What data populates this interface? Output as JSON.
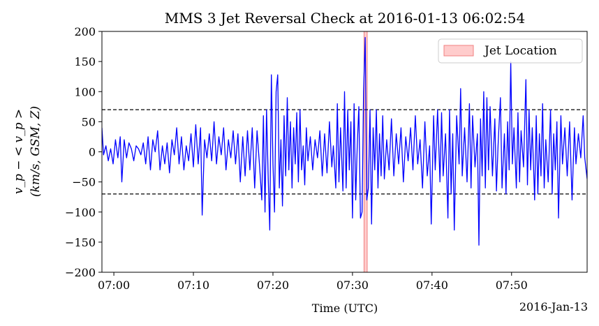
{
  "chart_data": {
    "type": "line",
    "title": "MMS 3 Jet Reversal Check at 2016-01-13 06:02:54",
    "xlabel": "Time (UTC)",
    "ylabel_line1": "v_p − < v_p >",
    "ylabel_line2": "(km/s, GSM, Z)",
    "date_label": "2016-Jan-13",
    "xlim_minutes": [
      418.5,
      479.5
    ],
    "ylim": [
      -200,
      200
    ],
    "yticks": [
      -200,
      -150,
      -100,
      -50,
      0,
      50,
      100,
      150,
      200
    ],
    "xticks": [
      {
        "minute": 420,
        "label": "07:00"
      },
      {
        "minute": 430,
        "label": "07:10"
      },
      {
        "minute": 440,
        "label": "07:20"
      },
      {
        "minute": 450,
        "label": "07:30"
      },
      {
        "minute": 460,
        "label": "07:40"
      },
      {
        "minute": 470,
        "label": "07:50"
      }
    ],
    "thresholds": [
      70,
      -70
    ],
    "jet_band_minutes": [
      451.45,
      451.85
    ],
    "legend": {
      "label": "Jet Location",
      "placement": "upper-right"
    },
    "series": [
      {
        "color": "#0000ff",
        "points": [
          [
            418.5,
            40
          ],
          [
            418.7,
            -5
          ],
          [
            419.0,
            10
          ],
          [
            419.3,
            -15
          ],
          [
            419.6,
            5
          ],
          [
            419.9,
            -20
          ],
          [
            420.2,
            20
          ],
          [
            420.5,
            -10
          ],
          [
            420.8,
            25
          ],
          [
            421.0,
            -50
          ],
          [
            421.3,
            20
          ],
          [
            421.6,
            -10
          ],
          [
            421.9,
            15
          ],
          [
            422.2,
            5
          ],
          [
            422.5,
            -15
          ],
          [
            422.8,
            10
          ],
          [
            423.1,
            5
          ],
          [
            423.4,
            -5
          ],
          [
            423.7,
            15
          ],
          [
            424.0,
            -20
          ],
          [
            424.3,
            25
          ],
          [
            424.6,
            -30
          ],
          [
            424.9,
            20
          ],
          [
            425.2,
            0
          ],
          [
            425.5,
            35
          ],
          [
            425.8,
            -30
          ],
          [
            426.1,
            10
          ],
          [
            426.4,
            -20
          ],
          [
            426.7,
            15
          ],
          [
            427.0,
            -35
          ],
          [
            427.3,
            20
          ],
          [
            427.6,
            -5
          ],
          [
            427.9,
            40
          ],
          [
            428.2,
            -20
          ],
          [
            428.5,
            25
          ],
          [
            428.8,
            -30
          ],
          [
            429.1,
            10
          ],
          [
            429.4,
            -15
          ],
          [
            429.7,
            30
          ],
          [
            430.0,
            -25
          ],
          [
            430.3,
            45
          ],
          [
            430.6,
            -20
          ],
          [
            430.9,
            40
          ],
          [
            431.1,
            -105
          ],
          [
            431.4,
            20
          ],
          [
            431.7,
            -10
          ],
          [
            432.0,
            30
          ],
          [
            432.3,
            -15
          ],
          [
            432.6,
            50
          ],
          [
            432.9,
            -20
          ],
          [
            433.2,
            25
          ],
          [
            433.5,
            -5
          ],
          [
            433.8,
            40
          ],
          [
            434.1,
            -30
          ],
          [
            434.4,
            20
          ],
          [
            434.7,
            -10
          ],
          [
            435.0,
            35
          ],
          [
            435.3,
            -20
          ],
          [
            435.6,
            30
          ],
          [
            435.9,
            -50
          ],
          [
            436.2,
            25
          ],
          [
            436.5,
            -40
          ],
          [
            436.8,
            35
          ],
          [
            437.1,
            -30
          ],
          [
            437.4,
            40
          ],
          [
            437.7,
            -60
          ],
          [
            438.0,
            35
          ],
          [
            438.3,
            -20
          ],
          [
            438.6,
            -80
          ],
          [
            438.8,
            60
          ],
          [
            439.0,
            -100
          ],
          [
            439.2,
            70
          ],
          [
            439.4,
            -40
          ],
          [
            439.6,
            -130
          ],
          [
            439.8,
            128
          ],
          [
            440.0,
            -20
          ],
          [
            440.2,
            -100
          ],
          [
            440.4,
            100
          ],
          [
            440.6,
            128
          ],
          [
            440.8,
            -60
          ],
          [
            441.0,
            20
          ],
          [
            441.2,
            -90
          ],
          [
            441.4,
            60
          ],
          [
            441.6,
            -40
          ],
          [
            441.8,
            90
          ],
          [
            442.0,
            -30
          ],
          [
            442.2,
            50
          ],
          [
            442.4,
            -60
          ],
          [
            442.6,
            40
          ],
          [
            442.8,
            -20
          ],
          [
            443.0,
            65
          ],
          [
            443.2,
            -50
          ],
          [
            443.4,
            70
          ],
          [
            443.6,
            -30
          ],
          [
            443.8,
            10
          ],
          [
            444.0,
            -55
          ],
          [
            444.2,
            40
          ],
          [
            444.4,
            -15
          ],
          [
            444.7,
            25
          ],
          [
            445.0,
            -30
          ],
          [
            445.3,
            20
          ],
          [
            445.6,
            -10
          ],
          [
            445.9,
            35
          ],
          [
            446.2,
            -40
          ],
          [
            446.5,
            30
          ],
          [
            446.8,
            -35
          ],
          [
            447.1,
            50
          ],
          [
            447.4,
            -25
          ],
          [
            447.6,
            10
          ],
          [
            447.9,
            -60
          ],
          [
            448.1,
            80
          ],
          [
            448.3,
            -50
          ],
          [
            448.5,
            40
          ],
          [
            448.8,
            -65
          ],
          [
            449.0,
            100
          ],
          [
            449.2,
            -60
          ],
          [
            449.4,
            70
          ],
          [
            449.6,
            -30
          ],
          [
            449.8,
            50
          ],
          [
            450.0,
            -110
          ],
          [
            450.2,
            80
          ],
          [
            450.4,
            -80
          ],
          [
            450.6,
            10
          ],
          [
            450.8,
            75
          ],
          [
            451.0,
            -110
          ],
          [
            451.2,
            -100
          ],
          [
            451.4,
            100
          ],
          [
            451.6,
            190
          ],
          [
            451.8,
            -80
          ],
          [
            452.0,
            -60
          ],
          [
            452.2,
            70
          ],
          [
            452.4,
            -120
          ],
          [
            452.6,
            40
          ],
          [
            452.8,
            -30
          ],
          [
            453.0,
            70
          ],
          [
            453.2,
            -60
          ],
          [
            453.4,
            30
          ],
          [
            453.6,
            -40
          ],
          [
            453.8,
            60
          ],
          [
            454.0,
            -45
          ],
          [
            454.3,
            20
          ],
          [
            454.6,
            -30
          ],
          [
            454.9,
            55
          ],
          [
            455.2,
            -40
          ],
          [
            455.5,
            30
          ],
          [
            455.8,
            -20
          ],
          [
            456.1,
            40
          ],
          [
            456.4,
            -50
          ],
          [
            456.7,
            25
          ],
          [
            457.0,
            -15
          ],
          [
            457.3,
            40
          ],
          [
            457.6,
            -30
          ],
          [
            457.9,
            60
          ],
          [
            458.2,
            -20
          ],
          [
            458.5,
            20
          ],
          [
            458.8,
            -60
          ],
          [
            459.1,
            50
          ],
          [
            459.4,
            -40
          ],
          [
            459.7,
            10
          ],
          [
            459.9,
            -120
          ],
          [
            460.2,
            60
          ],
          [
            460.4,
            -30
          ],
          [
            460.7,
            70
          ],
          [
            461.0,
            -50
          ],
          [
            461.2,
            65
          ],
          [
            461.4,
            -40
          ],
          [
            461.7,
            30
          ],
          [
            462.0,
            -110
          ],
          [
            462.2,
            70
          ],
          [
            462.4,
            -70
          ],
          [
            462.6,
            30
          ],
          [
            462.8,
            -130
          ],
          [
            463.1,
            60
          ],
          [
            463.4,
            -20
          ],
          [
            463.6,
            105
          ],
          [
            463.8,
            -40
          ],
          [
            464.1,
            40
          ],
          [
            464.4,
            -50
          ],
          [
            464.7,
            80
          ],
          [
            464.9,
            -60
          ],
          [
            465.1,
            60
          ],
          [
            465.4,
            -25
          ],
          [
            465.7,
            30
          ],
          [
            465.9,
            -155
          ],
          [
            466.1,
            55
          ],
          [
            466.3,
            -40
          ],
          [
            466.5,
            100
          ],
          [
            466.7,
            -60
          ],
          [
            466.9,
            90
          ],
          [
            467.1,
            -30
          ],
          [
            467.3,
            75
          ],
          [
            467.6,
            -40
          ],
          [
            467.9,
            55
          ],
          [
            468.1,
            -65
          ],
          [
            468.3,
            10
          ],
          [
            468.6,
            90
          ],
          [
            468.8,
            -60
          ],
          [
            469.1,
            30
          ],
          [
            469.3,
            -70
          ],
          [
            469.5,
            50
          ],
          [
            469.7,
            -30
          ],
          [
            469.9,
            150
          ],
          [
            470.1,
            -20
          ],
          [
            470.3,
            40
          ],
          [
            470.6,
            -60
          ],
          [
            470.8,
            65
          ],
          [
            471.0,
            -50
          ],
          [
            471.2,
            35
          ],
          [
            471.5,
            -25
          ],
          [
            471.8,
            120
          ],
          [
            472.0,
            -55
          ],
          [
            472.2,
            70
          ],
          [
            472.4,
            -30
          ],
          [
            472.6,
            40
          ],
          [
            472.9,
            -80
          ],
          [
            473.1,
            60
          ],
          [
            473.3,
            -70
          ],
          [
            473.5,
            30
          ],
          [
            473.7,
            -40
          ],
          [
            473.9,
            80
          ],
          [
            474.1,
            -60
          ],
          [
            474.3,
            20
          ],
          [
            474.6,
            -50
          ],
          [
            474.9,
            70
          ],
          [
            475.1,
            -70
          ],
          [
            475.3,
            30
          ],
          [
            475.5,
            -30
          ],
          [
            475.7,
            50
          ],
          [
            475.9,
            -110
          ],
          [
            476.2,
            60
          ],
          [
            476.4,
            -20
          ],
          [
            476.7,
            40
          ],
          [
            477.0,
            -40
          ],
          [
            477.3,
            50
          ],
          [
            477.6,
            -80
          ],
          [
            477.9,
            40
          ],
          [
            478.1,
            -20
          ],
          [
            478.4,
            30
          ],
          [
            478.7,
            -10
          ],
          [
            479.0,
            60
          ],
          [
            479.2,
            -10
          ],
          [
            479.5,
            -45
          ]
        ]
      }
    ]
  }
}
